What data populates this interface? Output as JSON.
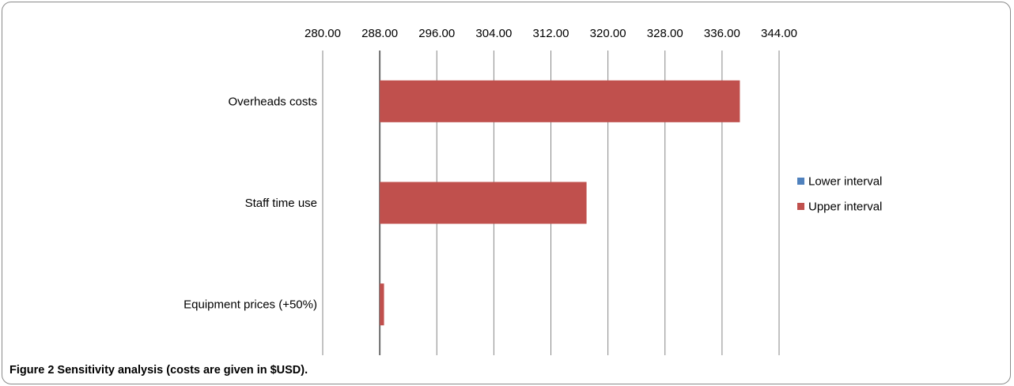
{
  "caption": {
    "label": "Figure 2",
    "text": " Sensitivity analysis (costs are given in $USD)."
  },
  "chart_data": {
    "type": "bar",
    "orientation": "horizontal",
    "xlim": [
      280,
      344
    ],
    "x_ticks": [
      "280.00",
      "288.00",
      "296.00",
      "304.00",
      "312.00",
      "320.00",
      "328.00",
      "336.00",
      "344.00"
    ],
    "x_tick_values": [
      280,
      288,
      296,
      304,
      312,
      320,
      328,
      336,
      344
    ],
    "x_axis_position": "top",
    "baseline": 288,
    "categories": [
      "Overheads costs",
      "Staff time use",
      "Equipment prices (+50%)"
    ],
    "series": [
      {
        "name": "Lower interval",
        "color": "#4f81bd",
        "values": [
          288,
          288,
          288
        ]
      },
      {
        "name": "Upper interval",
        "color": "#c0504d",
        "values": [
          338.5,
          317,
          288.6
        ]
      }
    ],
    "grid": true,
    "legend_position": "right"
  }
}
